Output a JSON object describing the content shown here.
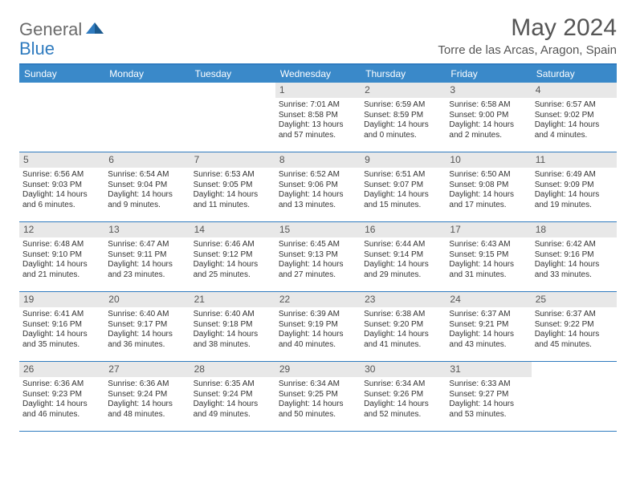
{
  "logo": {
    "text1": "General",
    "text2": "Blue"
  },
  "title": "May 2024",
  "location": "Torre de las Arcas, Aragon, Spain",
  "colors": {
    "header_bg": "#3a89c9",
    "header_text": "#ffffff",
    "border": "#2f7bbf",
    "daynum_bg": "#e8e8e8",
    "text": "#333333",
    "logo_gray": "#6b6b6b",
    "logo_blue": "#2f7bbf"
  },
  "day_headers": [
    "Sunday",
    "Monday",
    "Tuesday",
    "Wednesday",
    "Thursday",
    "Friday",
    "Saturday"
  ],
  "weeks": [
    [
      {
        "empty": true
      },
      {
        "empty": true
      },
      {
        "empty": true
      },
      {
        "n": "1",
        "sunrise": "Sunrise: 7:01 AM",
        "sunset": "Sunset: 8:58 PM",
        "daylight": "Daylight: 13 hours and 57 minutes."
      },
      {
        "n": "2",
        "sunrise": "Sunrise: 6:59 AM",
        "sunset": "Sunset: 8:59 PM",
        "daylight": "Daylight: 14 hours and 0 minutes."
      },
      {
        "n": "3",
        "sunrise": "Sunrise: 6:58 AM",
        "sunset": "Sunset: 9:00 PM",
        "daylight": "Daylight: 14 hours and 2 minutes."
      },
      {
        "n": "4",
        "sunrise": "Sunrise: 6:57 AM",
        "sunset": "Sunset: 9:02 PM",
        "daylight": "Daylight: 14 hours and 4 minutes."
      }
    ],
    [
      {
        "n": "5",
        "sunrise": "Sunrise: 6:56 AM",
        "sunset": "Sunset: 9:03 PM",
        "daylight": "Daylight: 14 hours and 6 minutes."
      },
      {
        "n": "6",
        "sunrise": "Sunrise: 6:54 AM",
        "sunset": "Sunset: 9:04 PM",
        "daylight": "Daylight: 14 hours and 9 minutes."
      },
      {
        "n": "7",
        "sunrise": "Sunrise: 6:53 AM",
        "sunset": "Sunset: 9:05 PM",
        "daylight": "Daylight: 14 hours and 11 minutes."
      },
      {
        "n": "8",
        "sunrise": "Sunrise: 6:52 AM",
        "sunset": "Sunset: 9:06 PM",
        "daylight": "Daylight: 14 hours and 13 minutes."
      },
      {
        "n": "9",
        "sunrise": "Sunrise: 6:51 AM",
        "sunset": "Sunset: 9:07 PM",
        "daylight": "Daylight: 14 hours and 15 minutes."
      },
      {
        "n": "10",
        "sunrise": "Sunrise: 6:50 AM",
        "sunset": "Sunset: 9:08 PM",
        "daylight": "Daylight: 14 hours and 17 minutes."
      },
      {
        "n": "11",
        "sunrise": "Sunrise: 6:49 AM",
        "sunset": "Sunset: 9:09 PM",
        "daylight": "Daylight: 14 hours and 19 minutes."
      }
    ],
    [
      {
        "n": "12",
        "sunrise": "Sunrise: 6:48 AM",
        "sunset": "Sunset: 9:10 PM",
        "daylight": "Daylight: 14 hours and 21 minutes."
      },
      {
        "n": "13",
        "sunrise": "Sunrise: 6:47 AM",
        "sunset": "Sunset: 9:11 PM",
        "daylight": "Daylight: 14 hours and 23 minutes."
      },
      {
        "n": "14",
        "sunrise": "Sunrise: 6:46 AM",
        "sunset": "Sunset: 9:12 PM",
        "daylight": "Daylight: 14 hours and 25 minutes."
      },
      {
        "n": "15",
        "sunrise": "Sunrise: 6:45 AM",
        "sunset": "Sunset: 9:13 PM",
        "daylight": "Daylight: 14 hours and 27 minutes."
      },
      {
        "n": "16",
        "sunrise": "Sunrise: 6:44 AM",
        "sunset": "Sunset: 9:14 PM",
        "daylight": "Daylight: 14 hours and 29 minutes."
      },
      {
        "n": "17",
        "sunrise": "Sunrise: 6:43 AM",
        "sunset": "Sunset: 9:15 PM",
        "daylight": "Daylight: 14 hours and 31 minutes."
      },
      {
        "n": "18",
        "sunrise": "Sunrise: 6:42 AM",
        "sunset": "Sunset: 9:16 PM",
        "daylight": "Daylight: 14 hours and 33 minutes."
      }
    ],
    [
      {
        "n": "19",
        "sunrise": "Sunrise: 6:41 AM",
        "sunset": "Sunset: 9:16 PM",
        "daylight": "Daylight: 14 hours and 35 minutes."
      },
      {
        "n": "20",
        "sunrise": "Sunrise: 6:40 AM",
        "sunset": "Sunset: 9:17 PM",
        "daylight": "Daylight: 14 hours and 36 minutes."
      },
      {
        "n": "21",
        "sunrise": "Sunrise: 6:40 AM",
        "sunset": "Sunset: 9:18 PM",
        "daylight": "Daylight: 14 hours and 38 minutes."
      },
      {
        "n": "22",
        "sunrise": "Sunrise: 6:39 AM",
        "sunset": "Sunset: 9:19 PM",
        "daylight": "Daylight: 14 hours and 40 minutes."
      },
      {
        "n": "23",
        "sunrise": "Sunrise: 6:38 AM",
        "sunset": "Sunset: 9:20 PM",
        "daylight": "Daylight: 14 hours and 41 minutes."
      },
      {
        "n": "24",
        "sunrise": "Sunrise: 6:37 AM",
        "sunset": "Sunset: 9:21 PM",
        "daylight": "Daylight: 14 hours and 43 minutes."
      },
      {
        "n": "25",
        "sunrise": "Sunrise: 6:37 AM",
        "sunset": "Sunset: 9:22 PM",
        "daylight": "Daylight: 14 hours and 45 minutes."
      }
    ],
    [
      {
        "n": "26",
        "sunrise": "Sunrise: 6:36 AM",
        "sunset": "Sunset: 9:23 PM",
        "daylight": "Daylight: 14 hours and 46 minutes."
      },
      {
        "n": "27",
        "sunrise": "Sunrise: 6:36 AM",
        "sunset": "Sunset: 9:24 PM",
        "daylight": "Daylight: 14 hours and 48 minutes."
      },
      {
        "n": "28",
        "sunrise": "Sunrise: 6:35 AM",
        "sunset": "Sunset: 9:24 PM",
        "daylight": "Daylight: 14 hours and 49 minutes."
      },
      {
        "n": "29",
        "sunrise": "Sunrise: 6:34 AM",
        "sunset": "Sunset: 9:25 PM",
        "daylight": "Daylight: 14 hours and 50 minutes."
      },
      {
        "n": "30",
        "sunrise": "Sunrise: 6:34 AM",
        "sunset": "Sunset: 9:26 PM",
        "daylight": "Daylight: 14 hours and 52 minutes."
      },
      {
        "n": "31",
        "sunrise": "Sunrise: 6:33 AM",
        "sunset": "Sunset: 9:27 PM",
        "daylight": "Daylight: 14 hours and 53 minutes."
      },
      {
        "empty": true
      }
    ]
  ]
}
